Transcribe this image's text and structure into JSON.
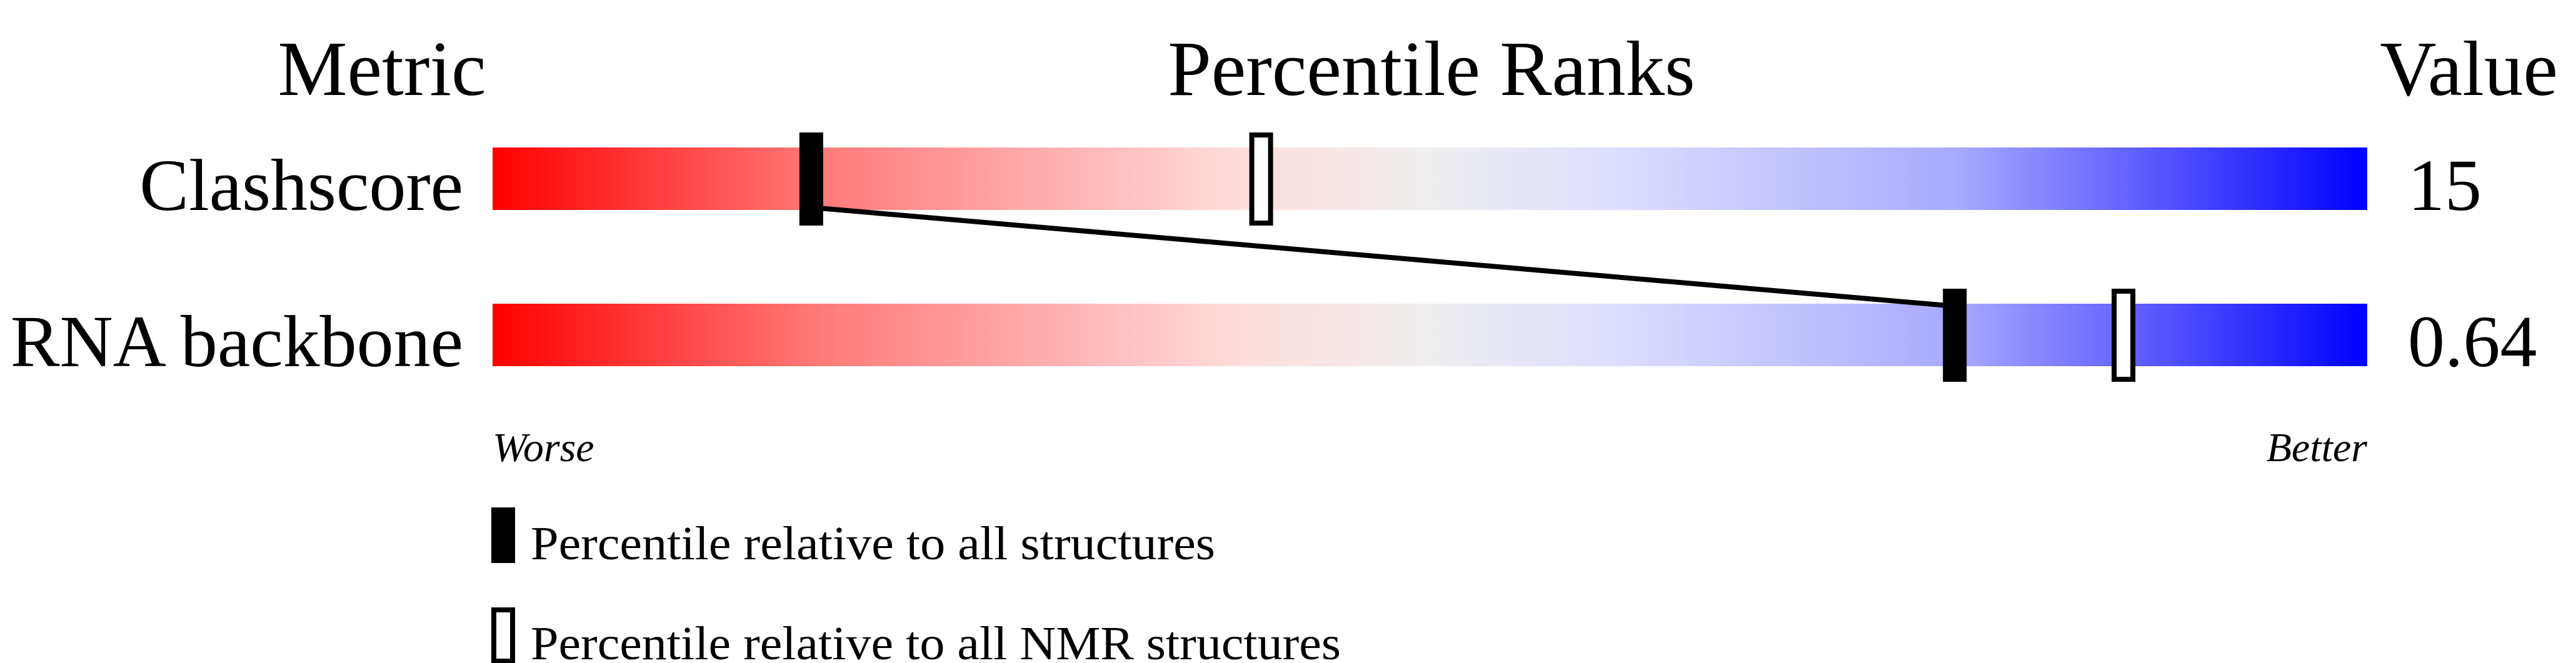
{
  "chart_data": {
    "type": "percentile-slider",
    "headers": {
      "metric": "Metric",
      "ranks": "Percentile Ranks",
      "value": "Value"
    },
    "xlim": [
      0,
      100
    ],
    "direction_labels": {
      "worse": "Worse",
      "better": "Better"
    },
    "color_scale": [
      "#ff0000",
      "#ff7777",
      "#ffdddd",
      "#eeeeee",
      "#ddddff",
      "#aaaaff",
      "#0000ff"
    ],
    "rows": [
      {
        "metric": "Clashscore",
        "value": "15",
        "percentile_all": 17,
        "percentile_nmr": 41
      },
      {
        "metric": "RNA backbone",
        "value": "0.64",
        "percentile_all": 78,
        "percentile_nmr": 87
      }
    ],
    "legend": [
      {
        "marker": "filled",
        "label": "Percentile relative to all structures"
      },
      {
        "marker": "open",
        "label": "Percentile relative to all NMR structures"
      }
    ]
  }
}
